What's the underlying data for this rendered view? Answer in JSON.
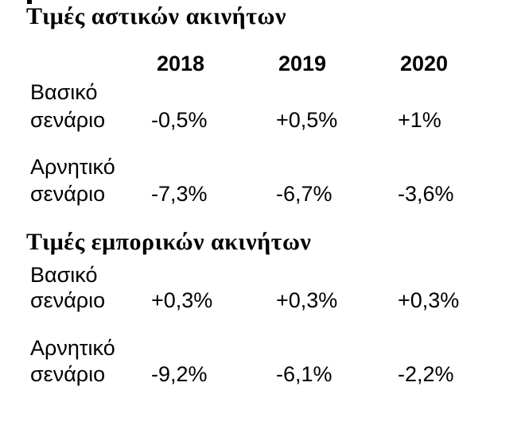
{
  "page": {
    "background_color": "#ffffff",
    "text_color": "#000000"
  },
  "document": {
    "columns": [
      "2018",
      "2019",
      "2020"
    ],
    "sections": [
      {
        "title": "Τιμές αστικών ακινήτων",
        "rows": [
          {
            "label_line1": "Βασικό",
            "label_line2": "σενάριο",
            "values": [
              "-0,5%",
              "+0,5%",
              "+1%"
            ]
          },
          {
            "label_line1": "Αρνητικό",
            "label_line2": "σενάριο",
            "values": [
              "-7,3%",
              "-6,7%",
              "-3,6%"
            ]
          }
        ]
      },
      {
        "title": "Τιμές εμπορικών ακινήτων",
        "rows": [
          {
            "label_line1": "Βασικό",
            "label_line2": "σενάριο",
            "values": [
              "+0,3%",
              "+0,3%",
              "+0,3%"
            ]
          },
          {
            "label_line1": "Αρνητικό",
            "label_line2": "σενάριο",
            "values": [
              "-9,2%",
              "-6,1%",
              "-2,2%"
            ]
          }
        ]
      }
    ]
  },
  "chart_data": {
    "type": "table",
    "tables": [
      {
        "title": "Τιμές αστικών ακινήτων",
        "columns": [
          "2018",
          "2019",
          "2020"
        ],
        "rows": [
          {
            "label": "Βασικό σενάριο",
            "values": [
              "-0,5%",
              "+0,5%",
              "+1%"
            ]
          },
          {
            "label": "Αρνητικό σενάριο",
            "values": [
              "-7,3%",
              "-6,7%",
              "-3,6%"
            ]
          }
        ]
      },
      {
        "title": "Τιμές εμπορικών ακινήτων",
        "columns": [
          "2018",
          "2019",
          "2020"
        ],
        "rows": [
          {
            "label": "Βασικό σενάριο",
            "values": [
              "+0,3%",
              "+0,3%",
              "+0,3%"
            ]
          },
          {
            "label": "Αρνητικό σενάριο",
            "values": [
              "-9,2%",
              "-6,1%",
              "-2,2%"
            ]
          }
        ]
      }
    ]
  }
}
